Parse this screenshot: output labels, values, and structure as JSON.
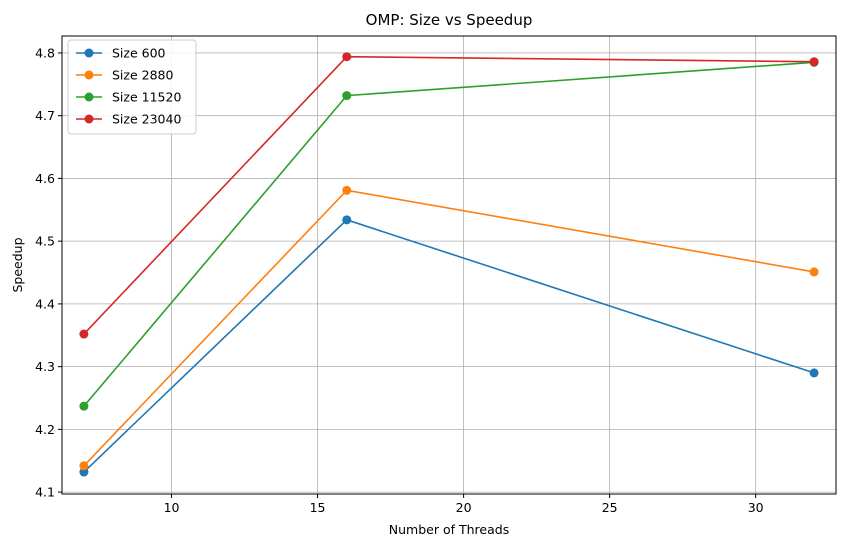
{
  "chart_data": {
    "type": "line",
    "title": "OMP: Size vs Speedup",
    "xlabel": "Number of Threads",
    "ylabel": "Speedup",
    "xlim": [
      6.25,
      32.75
    ],
    "ylim": [
      4.097,
      4.827
    ],
    "xticks": [
      10,
      15,
      20,
      25,
      30
    ],
    "yticks": [
      4.1,
      4.2,
      4.3,
      4.4,
      4.5,
      4.6,
      4.7,
      4.8
    ],
    "grid": true,
    "legend": "top-left",
    "x": [
      7,
      16,
      32
    ],
    "series": [
      {
        "name": "Size 600",
        "color": "#1f77b4",
        "values": [
          4.132,
          4.534,
          4.29
        ]
      },
      {
        "name": "Size 2880",
        "color": "#ff7f0e",
        "values": [
          4.142,
          4.581,
          4.451
        ]
      },
      {
        "name": "Size 11520",
        "color": "#2ca02c",
        "values": [
          4.237,
          4.732,
          4.785
        ]
      },
      {
        "name": "Size 23040",
        "color": "#d62728",
        "values": [
          4.352,
          4.794,
          4.786
        ]
      }
    ]
  }
}
